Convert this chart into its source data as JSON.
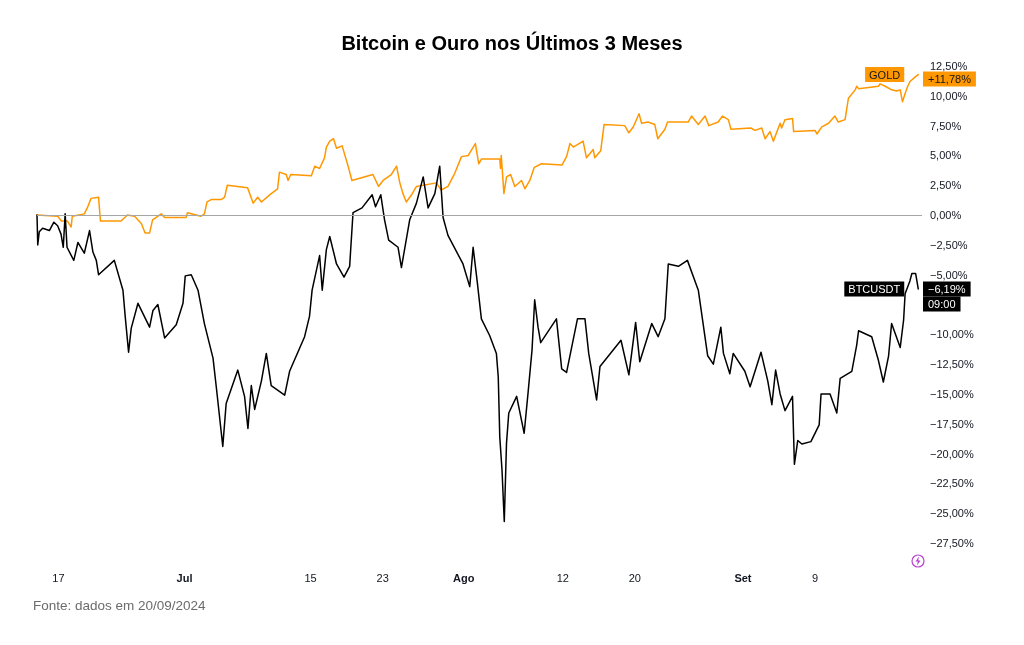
{
  "chart_data": {
    "type": "line",
    "title": "Bitcoin e Ouro nos Últimos 3 Meses",
    "legend": "right",
    "xlim": [
      "2024-06-14T15:00",
      "2024-09-20T21:00"
    ],
    "xticks": [
      {
        "value": "2024-06-17",
        "label": "17"
      },
      {
        "value": "2024-07-01",
        "label": "Jul"
      },
      {
        "value": "2024-07-15",
        "label": "15"
      },
      {
        "value": "2024-07-23",
        "label": "23"
      },
      {
        "value": "2024-08-01",
        "label": "Ago"
      },
      {
        "value": "2024-08-12",
        "label": "12"
      },
      {
        "value": "2024-08-20",
        "label": "20"
      },
      {
        "value": "2024-09-01",
        "label": "Set"
      },
      {
        "value": "2024-09-09",
        "label": "9"
      }
    ],
    "ylim": [
      -27.5,
      12.5
    ],
    "yticks": [
      {
        "value": 12.5,
        "label": "12,50%"
      },
      {
        "value": 10,
        "label": "10,00%"
      },
      {
        "value": 7.5,
        "label": "7,50%"
      },
      {
        "value": 5,
        "label": "5,00%"
      },
      {
        "value": 2.5,
        "label": "2,50%"
      },
      {
        "value": 0,
        "label": "0,00%"
      },
      {
        "value": -2.5,
        "label": "−2,50%"
      },
      {
        "value": -5,
        "label": "−5,00%"
      },
      {
        "value": -10,
        "label": "−10,00%"
      },
      {
        "value": -12.5,
        "label": "−12,50%"
      },
      {
        "value": -15,
        "label": "−15,00%"
      },
      {
        "value": -17.5,
        "label": "−17,50%"
      },
      {
        "value": -20,
        "label": "−20,00%"
      },
      {
        "value": -22.5,
        "label": "−22,50%"
      },
      {
        "value": -25,
        "label": "−25,00%"
      },
      {
        "value": -27.5,
        "label": "−27,50%"
      }
    ],
    "ref_lines": [
      {
        "axis": "y",
        "value": 0,
        "color": "#a6a6a6"
      }
    ],
    "series": [
      {
        "name": "GOLD",
        "color": "#ff9800",
        "x": [
          "2024-06-14T15:00",
          "2024-06-16T22:00",
          "2024-06-17T08:00",
          "2024-06-18T00:00",
          "2024-06-18T10:00",
          "2024-06-18T13:00",
          "2024-06-19T21:00",
          "2024-06-20T05:00",
          "2024-06-20T15:00",
          "2024-06-21T11:00",
          "2024-06-21T16:00",
          "2024-06-23T23:00",
          "2024-06-24T16:00",
          "2024-06-25T11:00",
          "2024-06-26T05:00",
          "2024-06-26T15:00",
          "2024-06-27T03:00",
          "2024-06-27T11:00",
          "2024-06-28T10:00",
          "2024-06-28T19:00",
          "2024-07-01T04:00",
          "2024-07-01T08:00",
          "2024-07-02T20:00",
          "2024-07-03T05:00",
          "2024-07-03T12:00",
          "2024-07-03T23:00",
          "2024-07-05T02:00",
          "2024-07-05T11:00",
          "2024-07-05T18:00",
          "2024-07-08T00:00",
          "2024-07-08T15:00",
          "2024-07-09T03:00",
          "2024-07-09T13:00",
          "2024-07-10T15:00",
          "2024-07-11T08:00",
          "2024-07-11T13:00",
          "2024-07-12T07:00",
          "2024-07-12T12:00",
          "2024-07-12T19:00",
          "2024-07-15T02:00",
          "2024-07-15T11:00",
          "2024-07-16T00:00",
          "2024-07-16T13:00",
          "2024-07-16T18:00",
          "2024-07-17T03:00",
          "2024-07-17T13:00",
          "2024-07-17T21:00",
          "2024-07-18T12:00",
          "2024-07-19T04:00",
          "2024-07-19T14:00",
          "2024-07-21T22:00",
          "2024-07-22T13:00",
          "2024-07-23T01:00",
          "2024-07-23T23:00",
          "2024-07-24T13:00",
          "2024-07-24T21:00",
          "2024-07-25T06:00",
          "2024-07-25T15:00",
          "2024-07-26T05:00",
          "2024-07-26T18:00",
          "2024-07-28T23:00",
          "2024-07-29T12:00",
          "2024-07-30T06:00",
          "2024-07-31T00:00",
          "2024-07-31T18:00",
          "2024-08-01T12:00",
          "2024-08-02T07:00",
          "2024-08-02T16:00",
          "2024-08-02T23:00",
          "2024-08-05T00:00",
          "2024-08-05T02:00",
          "2024-08-05T04:00",
          "2024-08-05T11:00",
          "2024-08-05T18:00",
          "2024-08-06T05:00",
          "2024-08-06T16:00",
          "2024-08-07T10:00",
          "2024-08-07T19:00",
          "2024-08-08T08:00",
          "2024-08-08T20:00",
          "2024-08-09T15:00",
          "2024-08-11T22:00",
          "2024-08-12T10:00",
          "2024-08-12T19:00",
          "2024-08-13T04:00",
          "2024-08-14T06:00",
          "2024-08-14T15:00",
          "2024-08-15T09:00",
          "2024-08-15T13:00",
          "2024-08-16T05:00",
          "2024-08-16T14:00",
          "2024-08-18T21:00",
          "2024-08-19T08:00",
          "2024-08-19T20:00",
          "2024-08-20T11:00",
          "2024-08-20T18:00",
          "2024-08-21T11:00",
          "2024-08-22T05:00",
          "2024-08-22T13:00",
          "2024-08-23T08:00",
          "2024-08-23T15:00",
          "2024-08-25T22:00",
          "2024-08-26T07:00",
          "2024-08-27T01:00",
          "2024-08-27T19:00",
          "2024-08-28T05:00",
          "2024-08-29T06:00",
          "2024-08-29T17:00",
          "2024-08-30T09:00",
          "2024-08-30T16:00",
          "2024-09-01T21:00",
          "2024-09-02T08:00",
          "2024-09-03T02:00",
          "2024-09-03T11:00",
          "2024-09-04T00:00",
          "2024-09-04T09:00",
          "2024-09-05T03:00",
          "2024-09-05T07:00",
          "2024-09-05T16:00",
          "2024-09-06T12:00",
          "2024-09-06T15:00",
          "2024-09-09T00:00",
          "2024-09-09T05:00",
          "2024-09-09T18:00",
          "2024-09-10T12:00",
          "2024-09-11T05:00",
          "2024-09-11T14:00",
          "2024-09-12T08:00",
          "2024-09-12T17:00",
          "2024-09-13T11:00",
          "2024-09-13T15:00",
          "2024-09-13T20:00",
          "2024-09-16T01:00",
          "2024-09-16T05:00",
          "2024-09-16T19:00",
          "2024-09-17T12:00",
          "2024-09-18T02:00",
          "2024-09-18T11:00",
          "2024-09-18T17:00",
          "2024-09-19T00:00",
          "2024-09-19T07:00",
          "2024-09-19T13:00",
          "2024-09-20T00:00",
          "2024-09-20T11:00"
        ],
        "values": [
          0,
          -0.1,
          -0.5,
          -0.5,
          -1.0,
          -0.1,
          0.1,
          0.6,
          1.4,
          1.5,
          -0.5,
          -0.5,
          0,
          -0.1,
          -0.7,
          -1.5,
          -1.5,
          -0.4,
          0.1,
          -0.2,
          -0.2,
          0.2,
          -0.1,
          0.1,
          1.1,
          1.3,
          1.3,
          1.5,
          2.5,
          2.3,
          1.0,
          1.5,
          1.1,
          1.8,
          2.2,
          3.6,
          3.4,
          2.9,
          3.4,
          3.3,
          4.1,
          3.9,
          4.8,
          5.7,
          6.2,
          6.4,
          5.6,
          5.8,
          4.1,
          2.9,
          3.4,
          2.4,
          2.9,
          3.4,
          4.1,
          2.8,
          1.8,
          1.1,
          1.7,
          2.4,
          2.7,
          2.1,
          2.4,
          3.5,
          4.9,
          5.0,
          6.0,
          4.3,
          4.7,
          4.7,
          3.9,
          5.0,
          1.8,
          3.2,
          3.4,
          2.4,
          2.9,
          2.2,
          2.9,
          4.0,
          4.3,
          4.2,
          4.9,
          6.0,
          5.7,
          6.2,
          4.8,
          5.5,
          4.8,
          5.4,
          7.6,
          7.5,
          6.9,
          7.4,
          8.5,
          7.7,
          7.8,
          7.6,
          6.4,
          7.2,
          7.8,
          7.8,
          8.3,
          7.6,
          8.3,
          7.5,
          7.8,
          8.3,
          8.0,
          7.2,
          7.3,
          7.1,
          7.3,
          6.4,
          7.0,
          6.2,
          7.7,
          7.3,
          8.0,
          8.1,
          7.0,
          7.1,
          6.8,
          7.4,
          7.7,
          8.3,
          7.8,
          8.0,
          9.8,
          10.5,
          10.8,
          10.6,
          10.8,
          11.0,
          10.8,
          10.5,
          10.4,
          10.5,
          9.5,
          10.2,
          10.8,
          11.2,
          11.5,
          11.78
        ]
      },
      {
        "name": "BTCUSDT",
        "color": "#000000",
        "x": [
          "2024-06-14T15:00",
          "2024-06-14T17:00",
          "2024-06-14T21:00",
          "2024-06-15T06:00",
          "2024-06-16T00:00",
          "2024-06-16T12:00",
          "2024-06-16T22:00",
          "2024-06-17T07:00",
          "2024-06-17T13:00",
          "2024-06-17T18:00",
          "2024-06-17T23:00",
          "2024-06-18T17:00",
          "2024-06-19T04:00",
          "2024-06-19T21:00",
          "2024-06-20T11:00",
          "2024-06-20T20:00",
          "2024-06-21T05:00",
          "2024-06-21T11:00",
          "2024-06-23T05:00",
          "2024-06-24T04:00",
          "2024-06-24T10:00",
          "2024-06-24T19:00",
          "2024-06-25T02:00",
          "2024-06-25T20:00",
          "2024-06-27T03:00",
          "2024-06-27T12:00",
          "2024-06-28T01:00",
          "2024-06-28T19:00",
          "2024-06-30T02:00",
          "2024-06-30T20:00",
          "2024-07-01T02:00",
          "2024-07-01T18:00",
          "2024-07-02T12:00",
          "2024-07-03T05:00",
          "2024-07-04T04:00",
          "2024-07-04T13:00",
          "2024-07-05T06:00",
          "2024-07-05T15:00",
          "2024-07-06T22:00",
          "2024-07-07T16:00",
          "2024-07-08T01:00",
          "2024-07-08T10:00",
          "2024-07-08T19:00",
          "2024-07-09T13:00",
          "2024-07-10T02:00",
          "2024-07-10T15:00",
          "2024-07-12T03:00",
          "2024-07-12T16:00",
          "2024-07-14T08:00",
          "2024-07-14T21:00",
          "2024-07-15T04:00",
          "2024-07-16T00:00",
          "2024-07-16T07:00",
          "2024-07-16T18:00",
          "2024-07-17T03:00",
          "2024-07-17T21:00",
          "2024-07-18T17:00",
          "2024-07-19T08:00",
          "2024-07-19T17:00",
          "2024-07-20T17:00",
          "2024-07-21T20:00",
          "2024-07-22T05:00",
          "2024-07-22T19:00",
          "2024-07-23T05:00",
          "2024-07-23T16:00",
          "2024-07-24T17:00",
          "2024-07-25T02:00",
          "2024-07-26T00:00",
          "2024-07-26T18:00",
          "2024-07-27T12:00",
          "2024-07-28T01:00",
          "2024-07-28T19:00",
          "2024-07-29T08:00",
          "2024-07-29T17:00",
          "2024-07-30T06:00",
          "2024-07-31T22:00",
          "2024-08-01T16:00",
          "2024-08-02T01:00",
          "2024-08-02T12:00",
          "2024-08-02T23:00",
          "2024-08-03T21:00",
          "2024-08-04T15:00",
          "2024-08-04T20:00",
          "2024-08-05T00:00",
          "2024-08-05T06:00",
          "2024-08-05T12:00",
          "2024-08-05T18:00",
          "2024-08-06T00:00",
          "2024-08-06T21:00",
          "2024-08-07T17:00",
          "2024-08-08T04:00",
          "2024-08-08T14:00",
          "2024-08-08T21:00",
          "2024-08-09T06:00",
          "2024-08-09T13:00",
          "2024-08-11T07:00",
          "2024-08-11T21:00",
          "2024-08-12T10:00",
          "2024-08-13T15:00",
          "2024-08-14T11:00",
          "2024-08-14T21:00",
          "2024-08-15T18:00",
          "2024-08-16T03:00",
          "2024-08-18T11:00",
          "2024-08-19T08:00",
          "2024-08-20T02:00",
          "2024-08-20T13:00",
          "2024-08-21T21:00",
          "2024-08-22T14:00",
          "2024-08-23T08:00",
          "2024-08-23T17:00",
          "2024-08-24T20:00",
          "2024-08-25T20:00",
          "2024-08-27T01:00",
          "2024-08-28T02:00",
          "2024-08-28T17:00",
          "2024-08-29T13:00",
          "2024-08-29T20:00",
          "2024-08-30T13:00",
          "2024-08-30T22:00",
          "2024-09-01T05:00",
          "2024-09-01T19:00",
          "2024-09-03T00:00",
          "2024-09-03T18:00",
          "2024-09-04T05:00",
          "2024-09-04T15:00",
          "2024-09-05T03:00",
          "2024-09-05T16:00",
          "2024-09-06T12:00",
          "2024-09-06T17:00",
          "2024-09-07T02:00",
          "2024-09-07T13:00",
          "2024-09-08T13:00",
          "2024-09-09T11:00",
          "2024-09-09T16:00",
          "2024-09-10T16:00",
          "2024-09-11T10:00",
          "2024-09-11T19:00",
          "2024-09-13T02:00",
          "2024-09-13T15:00",
          "2024-09-13T20:00",
          "2024-09-15T07:00",
          "2024-09-16T01:00",
          "2024-09-16T14:00",
          "2024-09-17T04:00",
          "2024-09-17T12:00",
          "2024-09-18T11:00",
          "2024-09-18T20:00",
          "2024-09-19T00:00",
          "2024-09-19T13:00",
          "2024-09-19T18:00",
          "2024-09-20T04:00",
          "2024-09-20T11:00"
        ],
        "values": [
          0,
          -2.5,
          -1.4,
          -1.1,
          -1.3,
          -0.6,
          -0.9,
          -1.6,
          -2.7,
          0.1,
          -2.7,
          -3.8,
          -2.3,
          -3.2,
          -1.3,
          -3.1,
          -3.8,
          -5.0,
          -3.8,
          -6.3,
          -8.5,
          -11.5,
          -9.5,
          -7.4,
          -9.4,
          -8.0,
          -7.5,
          -10.3,
          -9.2,
          -7.4,
          -5.1,
          -5.0,
          -6.3,
          -9.1,
          -12.0,
          -14.5,
          -19.4,
          -15.8,
          -13.0,
          -15.2,
          -17.9,
          -14.3,
          -16.3,
          -13.9,
          -11.6,
          -14.3,
          -15.1,
          -13.1,
          -10.2,
          -8.5,
          -6.3,
          -3.4,
          -6.3,
          -2.9,
          -1.8,
          -4.1,
          -5.2,
          -4.3,
          0.2,
          0.6,
          1.7,
          0.7,
          1.7,
          -0.4,
          -2.1,
          -2.7,
          -4.4,
          -0.4,
          1.0,
          3.2,
          0.6,
          1.8,
          4.1,
          -0.2,
          -1.7,
          -4.1,
          -6.0,
          -2.7,
          -5.6,
          -8.7,
          -10.1,
          -11.6,
          -13.6,
          -18.6,
          -21.4,
          -25.7,
          -19.1,
          -16.6,
          -15.2,
          -18.3,
          -14.7,
          -11.3,
          -7.1,
          -9.4,
          -10.7,
          -8.7,
          -12.9,
          -13.2,
          -8.7,
          -8.7,
          -11.6,
          -15.5,
          -12.7,
          -10.5,
          -13.4,
          -9.0,
          -12.3,
          -9.1,
          -10.2,
          -8.7,
          -4.1,
          -4.3,
          -3.8,
          -6.3,
          -11.8,
          -12.5,
          -9.4,
          -11.6,
          -13.3,
          -11.6,
          -13.1,
          -14.4,
          -11.5,
          -13.9,
          -15.9,
          -13.0,
          -15.0,
          -16.4,
          -15.2,
          -20.9,
          -18.9,
          -19.2,
          -19.0,
          -17.6,
          -15.0,
          -15.0,
          -16.6,
          -13.7,
          -13.1,
          -10.9,
          -9.7,
          -10.2,
          -12.2,
          -14.0,
          -11.8,
          -9.1,
          -11.1,
          -8.8,
          -6.6,
          -5.5,
          -4.9,
          -4.9,
          -6.19
        ]
      }
    ],
    "annotations": [
      {
        "text": "+11,78%",
        "x": "2024-09-20T11:00",
        "y": 11.78
      },
      {
        "text": "−6,19%",
        "x": "2024-09-20T11:00",
        "y": -6.19
      },
      {
        "text": "09:00",
        "x": "2024-09-20T11:00",
        "y": -6.19
      },
      "Fonte: dados em 20/09/2024"
    ]
  }
}
